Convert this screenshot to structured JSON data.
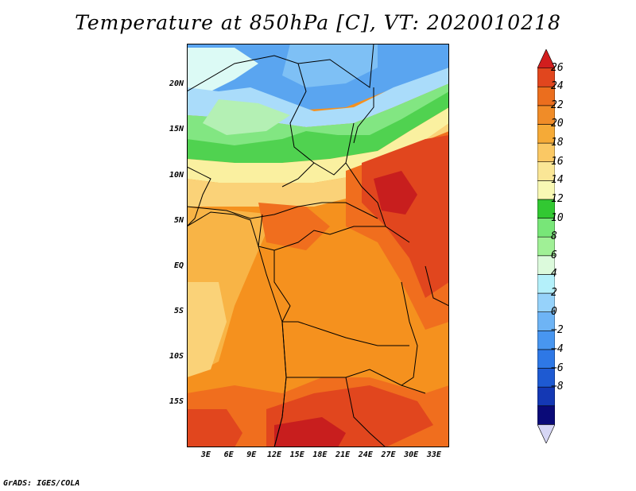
{
  "title": "Temperature at 850hPa [C], VT: 2020010218",
  "credit": "GrADS: IGES/COLA",
  "lat_axis": [
    {
      "label": "20N",
      "value": 20
    },
    {
      "label": "15N",
      "value": 15
    },
    {
      "label": "10N",
      "value": 10
    },
    {
      "label": "5N",
      "value": 5
    },
    {
      "label": "EQ",
      "value": 0
    },
    {
      "label": "5S",
      "value": -5
    },
    {
      "label": "10S",
      "value": -10
    },
    {
      "label": "15S",
      "value": -15
    }
  ],
  "lon_axis": [
    {
      "label": "3E",
      "value": 3
    },
    {
      "label": "6E",
      "value": 6
    },
    {
      "label": "9E",
      "value": 9
    },
    {
      "label": "12E",
      "value": 12
    },
    {
      "label": "15E",
      "value": 15
    },
    {
      "label": "18E",
      "value": 18
    },
    {
      "label": "21E",
      "value": 21
    },
    {
      "label": "24E",
      "value": 24
    },
    {
      "label": "27E",
      "value": 27
    },
    {
      "label": "30E",
      "value": 30
    },
    {
      "label": "33E",
      "value": 33
    }
  ],
  "map_extent": {
    "lon_min": 0.5,
    "lon_max": 35,
    "lat_min": -20,
    "lat_max": 24.5
  },
  "colorbar": {
    "levels": [
      {
        "label": "26",
        "value": 26
      },
      {
        "label": "24",
        "value": 24
      },
      {
        "label": "22",
        "value": 22
      },
      {
        "label": "20",
        "value": 20
      },
      {
        "label": "18",
        "value": 18
      },
      {
        "label": "16",
        "value": 16
      },
      {
        "label": "14",
        "value": 14
      },
      {
        "label": "12",
        "value": 12
      },
      {
        "label": "10",
        "value": 10
      },
      {
        "label": "8",
        "value": 8
      },
      {
        "label": "6",
        "value": 6
      },
      {
        "label": "4",
        "value": 4
      },
      {
        "label": "2",
        "value": 2
      },
      {
        "label": "0",
        "value": 0
      },
      {
        "label": "−2",
        "value": -2
      },
      {
        "label": "−4",
        "value": -4
      },
      {
        "label": "−6",
        "value": -6
      },
      {
        "label": "−8",
        "value": -8
      }
    ],
    "colors": [
      "#d6d6f5",
      "#0a0a78",
      "#1438b4",
      "#1e5ad2",
      "#2e78e6",
      "#4896f0",
      "#6eb4f5",
      "#96d2fa",
      "#b4f0fa",
      "#dcfadc",
      "#a0f096",
      "#78e678",
      "#32c832",
      "#f8f8b4",
      "#fae696",
      "#fac864",
      "#f5aa37",
      "#f08c28",
      "#eb6e1e",
      "#e1461e",
      "#d21e1e"
    ]
  },
  "field_colors": {
    "t26": "#c81e1e",
    "t24": "#e1461e",
    "t22": "#f06e1e",
    "t20": "#f5911e",
    "t18": "#f8b446",
    "t16": "#fad278",
    "t14": "#faf0a0",
    "t12": "#50d250",
    "t10": "#82e682",
    "t8": "#b4f0b4",
    "t6": "#dcfaf5",
    "t4": "#aadcfa",
    "t2": "#7ec0f5",
    "t0": "#5aa5f0"
  }
}
